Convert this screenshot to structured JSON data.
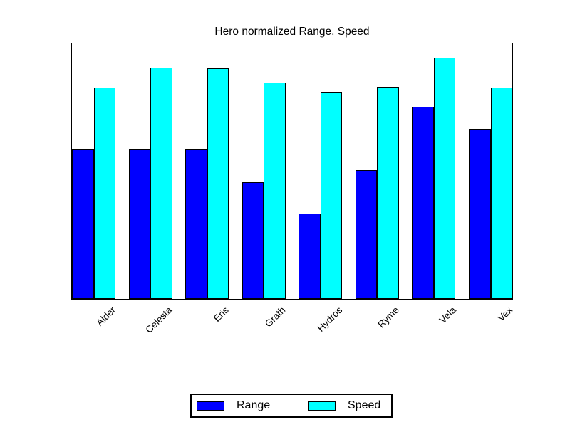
{
  "figure": {
    "background_color": "#ffffff",
    "plot_border_color": "#000000"
  },
  "chart_data": {
    "type": "bar",
    "title": "Hero normalized Range, Speed",
    "categories": [
      "Alder",
      "Celesta",
      "Eris",
      "Grath",
      "Hydros",
      "Ryme",
      "Vela",
      "Vex"
    ],
    "series": [
      {
        "name": "Range",
        "color": "#0000ff",
        "values": [
          0.585,
          0.585,
          0.585,
          0.458,
          0.334,
          0.504,
          0.752,
          0.667
        ]
      },
      {
        "name": "Speed",
        "color": "#00ffff",
        "values": [
          0.828,
          0.906,
          0.903,
          0.848,
          0.81,
          0.83,
          0.944,
          0.828
        ]
      }
    ],
    "xlabel": "",
    "ylabel": "",
    "ylim": [
      0,
      1
    ],
    "y_ticks_visible": false,
    "x_tick_rotation_deg": 45,
    "grid": false,
    "bar_edge_color": "#000000",
    "legend": {
      "position": "bottom-center",
      "entries": [
        "Range",
        "Speed"
      ]
    }
  }
}
